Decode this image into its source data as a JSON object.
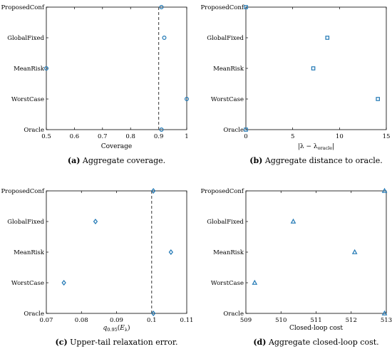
{
  "colors": {
    "marker": "#1f77b4",
    "axis": "#000000",
    "refline": "#555555"
  },
  "chart_data": [
    {
      "type": "scatter",
      "marker": "circle",
      "categories": [
        "ProposedConf",
        "GlobalFixed",
        "MeanRisk",
        "WorstCase",
        "Oracle"
      ],
      "values": [
        0.91,
        0.92,
        0.5,
        1.0,
        0.91
      ],
      "xlim": [
        0.5,
        1.0
      ],
      "xticks": [
        "0.5",
        "0.6",
        "0.7",
        "0.8",
        "0.9",
        "1"
      ],
      "tick_values": [
        0.5,
        0.6,
        0.7,
        0.8,
        0.9,
        1.0
      ],
      "xlabel": "Coverage",
      "reference_line": 0.9,
      "caption_label": "(a)",
      "caption_text": "Aggregate coverage."
    },
    {
      "type": "scatter",
      "marker": "square",
      "categories": [
        "ProposedConf",
        "GlobalFixed",
        "MeanRisk",
        "WorstCase",
        "Oracle"
      ],
      "values": [
        0.0,
        8.7,
        7.2,
        14.1,
        0.0
      ],
      "xlim": [
        0,
        15
      ],
      "xticks": [
        "0",
        "5",
        "10",
        "15"
      ],
      "tick_values": [
        0,
        5,
        10,
        15
      ],
      "xlabel": "|λ − λoracle|",
      "caption_label": "(b)",
      "caption_text": "Aggregate distance to oracle."
    },
    {
      "type": "scatter",
      "marker": "diamond",
      "categories": [
        "ProposedConf",
        "GlobalFixed",
        "MeanRisk",
        "WorstCase",
        "Oracle"
      ],
      "values": [
        0.1005,
        0.084,
        0.1055,
        0.075,
        0.1005
      ],
      "xlim": [
        0.07,
        0.11
      ],
      "xticks": [
        "0.07",
        "0.08",
        "0.09",
        "0.1",
        "0.11"
      ],
      "tick_values": [
        0.07,
        0.08,
        0.09,
        0.1,
        0.11
      ],
      "xlabel": "q0.95(Eλ)",
      "reference_line": 0.1,
      "caption_label": "(c)",
      "caption_text": "Upper-tail relaxation error."
    },
    {
      "type": "scatter",
      "marker": "triangle",
      "categories": [
        "ProposedConf",
        "GlobalFixed",
        "MeanRisk",
        "WorstCase",
        "Oracle"
      ],
      "values": [
        512.95,
        510.35,
        512.1,
        509.25,
        512.95
      ],
      "xlim": [
        509,
        513
      ],
      "xticks": [
        "509",
        "510",
        "511",
        "512",
        "513"
      ],
      "tick_values": [
        509,
        510,
        511,
        512,
        513
      ],
      "xlabel": "Closed-loop cost",
      "caption_label": "(d)",
      "caption_text": "Aggregate closed-loop cost."
    }
  ]
}
